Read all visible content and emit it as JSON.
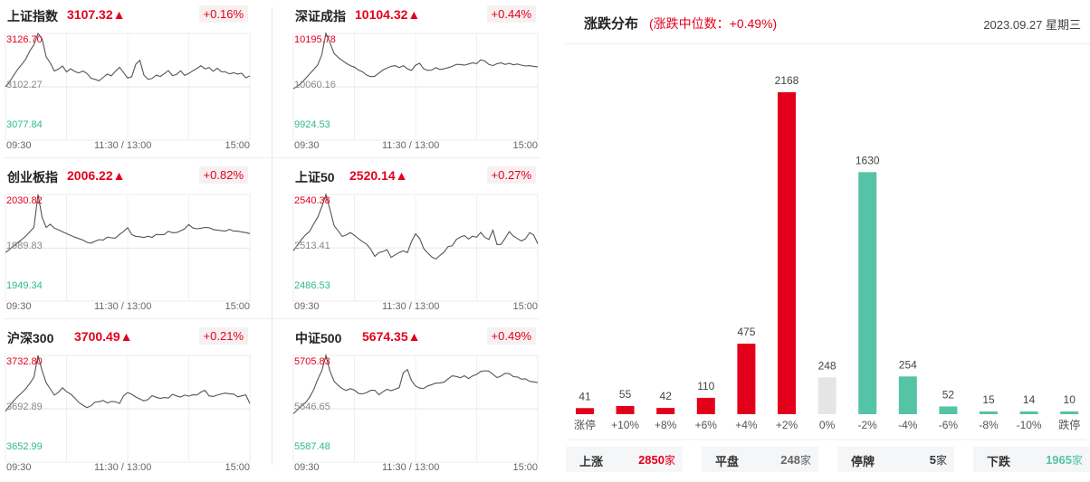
{
  "index_panels": [
    {
      "name": "上证指数",
      "value": "3107.32▲",
      "change": "+0.16%",
      "high": "3126.70",
      "mid": "3102.27",
      "low": "3077.84",
      "series": [
        3102.3,
        3104.5,
        3107.5,
        3110.2,
        3112.5,
        3115.0,
        3118.8,
        3121.5,
        3126.7,
        3124.2,
        3116.0,
        3113.2,
        3109.5,
        3110.4,
        3111.8,
        3109.1,
        3110.5,
        3109.3,
        3108.6,
        3109.5,
        3108.4,
        3106.2,
        3105.7,
        3105.0,
        3106.6,
        3108.1,
        3107.3,
        3109.4,
        3111.2,
        3108.8,
        3106.3,
        3106.9,
        3112.6,
        3114.4,
        3107.6,
        3105.7,
        3106.1,
        3107.6,
        3107.0,
        3108.3,
        3109.7,
        3107.4,
        3107.9,
        3109.6,
        3107.5,
        3108.4,
        3109.6,
        3110.7,
        3111.9,
        3110.5,
        3111.1,
        3109.4,
        3110.8,
        3109.2,
        3109.1,
        3108.2,
        3108.7,
        3108.1,
        3108.5,
        3106.4,
        3107.3
      ]
    },
    {
      "name": "深证成指",
      "value": "10104.32▲",
      "change": "+0.44%",
      "high": "10195.78",
      "mid": "10060.16",
      "low": "9924.53",
      "series": [
        10055,
        10062,
        10070,
        10081,
        10093,
        10104,
        10116,
        10142,
        10196,
        10172,
        10145,
        10135,
        10127,
        10120,
        10114,
        10110,
        10103,
        10098,
        10090,
        10086,
        10087,
        10095,
        10103,
        10108,
        10112,
        10114,
        10109,
        10114,
        10106,
        10102,
        10115,
        10120,
        10106,
        10102,
        10103,
        10109,
        10104,
        10106,
        10109,
        10112,
        10117,
        10117,
        10115,
        10118,
        10121,
        10119,
        10129,
        10126,
        10117,
        10114,
        10119,
        10121,
        10117,
        10120,
        10116,
        10118,
        10115,
        10113,
        10114,
        10112,
        10111
      ]
    },
    {
      "name": "创业板指",
      "value": "2006.22▲",
      "change": "+0.82%",
      "high": "2030.82",
      "mid": "1989.83",
      "low": "1949.34",
      "series": [
        1986.5,
        1988.7,
        1991.5,
        1994.0,
        1996.3,
        1999.1,
        2002.4,
        2005.7,
        2030.8,
        2013.3,
        2005.6,
        2008.0,
        2005.1,
        2003.8,
        2002.4,
        2001.0,
        1999.5,
        1998.2,
        1997.1,
        1996.0,
        1994.2,
        1993.6,
        1995.1,
        1996.3,
        1996.0,
        1998.2,
        1997.7,
        1997.5,
        2000.3,
        2002.5,
        2005.5,
        2000.1,
        1998.8,
        1998.5,
        1997.9,
        1998.9,
        1998.0,
        2000.3,
        2000.0,
        2000.2,
        2002.7,
        2001.6,
        2001.7,
        2003.0,
        2004.6,
        2007.8,
        2005.2,
        2004.6,
        2005.0,
        2005.7,
        2005.4,
        2004.0,
        2003.6,
        2003.1,
        2002.8,
        2004.2,
        2002.8,
        2002.8,
        2002.1,
        2001.7,
        2000.9
      ]
    },
    {
      "name": "上证50",
      "value": "2520.14▲",
      "change": "+0.27%",
      "high": "2540.38",
      "mid": "2513.41",
      "low": "2486.53",
      "series": [
        2512.0,
        2514.8,
        2517.6,
        2520.0,
        2521.7,
        2525.5,
        2528.9,
        2534.2,
        2540.4,
        2532.8,
        2524.7,
        2522.0,
        2519.2,
        2519.9,
        2521.1,
        2519.7,
        2518.0,
        2516.5,
        2515.3,
        2512.7,
        2509.1,
        2511.0,
        2511.6,
        2512.5,
        2508.6,
        2509.9,
        2511.1,
        2511.9,
        2511.0,
        2516.6,
        2520.5,
        2518.2,
        2513.1,
        2510.8,
        2508.8,
        2507.8,
        2509.6,
        2511.3,
        2514.1,
        2514.4,
        2517.6,
        2518.9,
        2519.6,
        2517.9,
        2519.3,
        2518.8,
        2521.2,
        2518.7,
        2517.6,
        2522.3,
        2515.1,
        2515.2,
        2518.3,
        2521.6,
        2519.4,
        2518.1,
        2516.9,
        2518.0,
        2521.1,
        2519.9,
        2515.5
      ]
    },
    {
      "name": "沪深300",
      "value": "3700.49▲",
      "change": "+0.21%",
      "high": "3732.80",
      "mid": "3692.89",
      "low": "3652.99",
      "series": [
        3691.0,
        3695.0,
        3698.7,
        3702.0,
        3704.8,
        3707.9,
        3712.0,
        3716.5,
        3732.8,
        3721.3,
        3712.4,
        3707.8,
        3703.1,
        3705.2,
        3708.6,
        3705.7,
        3703.9,
        3701.0,
        3697.6,
        3695.6,
        3693.8,
        3695.1,
        3697.9,
        3698.2,
        3699.1,
        3697.2,
        3698.4,
        3698.1,
        3696.8,
        3702.6,
        3705.1,
        3703.7,
        3701.7,
        3700.2,
        3698.8,
        3699.8,
        3702.7,
        3701.5,
        3700.7,
        3701.3,
        3700.9,
        3703.7,
        3702.5,
        3701.7,
        3703.1,
        3702.3,
        3703.3,
        3703.2,
        3705.4,
        3706.6,
        3702.5,
        3702.1,
        3703.1,
        3704.0,
        3704.6,
        3704.0,
        3703.9,
        3701.8,
        3702.6,
        3703.3,
        3696.9
      ]
    },
    {
      "name": "中证500",
      "value": "5674.35▲",
      "change": "+0.49%",
      "high": "5705.83",
      "mid": "5646.65",
      "low": "5587.48",
      "series": [
        5641.1,
        5645.3,
        5649.9,
        5653.5,
        5659.4,
        5667.8,
        5679.3,
        5689.0,
        5705.8,
        5688.4,
        5677.1,
        5672.6,
        5668.9,
        5666.9,
        5669.0,
        5667.3,
        5663.6,
        5663.1,
        5664.6,
        5667.1,
        5667.2,
        5662.2,
        5665.5,
        5668.2,
        5666.7,
        5668.3,
        5670.0,
        5686.6,
        5690.2,
        5677.9,
        5671.9,
        5669.5,
        5669.2,
        5671.9,
        5673.4,
        5675.1,
        5675.3,
        5676.1,
        5679.9,
        5683.2,
        5682.5,
        5681.1,
        5683.3,
        5680.2,
        5683.1,
        5684.8,
        5688.1,
        5688.8,
        5688.4,
        5684.9,
        5681.3,
        5683.1,
        5686.0,
        5685.6,
        5682.3,
        5681.9,
        5679.6,
        5679.9,
        5677.0,
        5676.4,
        5675.6
      ]
    }
  ],
  "time_axis": [
    "09:30",
    "11:30 / 13:00",
    "15:00"
  ],
  "distribution": {
    "title": "涨跌分布",
    "subtitle": "(涨跌中位数：+0.49%)",
    "date": "2023.09.27 星期三",
    "colors": {
      "up": "#e3001b",
      "flat": "#e5e5e5",
      "down": "#55c3a5"
    }
  },
  "chart_data": {
    "type": "bar",
    "categories": [
      "涨停",
      "+10%",
      "+8%",
      "+6%",
      "+4%",
      "+2%",
      "0%",
      "-2%",
      "-4%",
      "-6%",
      "-8%",
      "-10%",
      "跌停"
    ],
    "values": [
      41,
      55,
      42,
      110,
      475,
      2168,
      248,
      1630,
      254,
      52,
      15,
      14,
      10
    ],
    "kinds": [
      "up",
      "up",
      "up",
      "up",
      "up",
      "up",
      "flat",
      "down",
      "down",
      "down",
      "down",
      "down",
      "down"
    ]
  },
  "summary": [
    {
      "label": "上涨",
      "value": "2850",
      "unit": "家",
      "color": "#e3001b"
    },
    {
      "label": "平盘",
      "value": "248",
      "unit": "家",
      "color": "#666666"
    },
    {
      "label": "停牌",
      "value": "5",
      "unit": "家",
      "color": "#333333"
    },
    {
      "label": "下跌",
      "value": "1965",
      "unit": "家",
      "color": "#55c3a5"
    }
  ]
}
